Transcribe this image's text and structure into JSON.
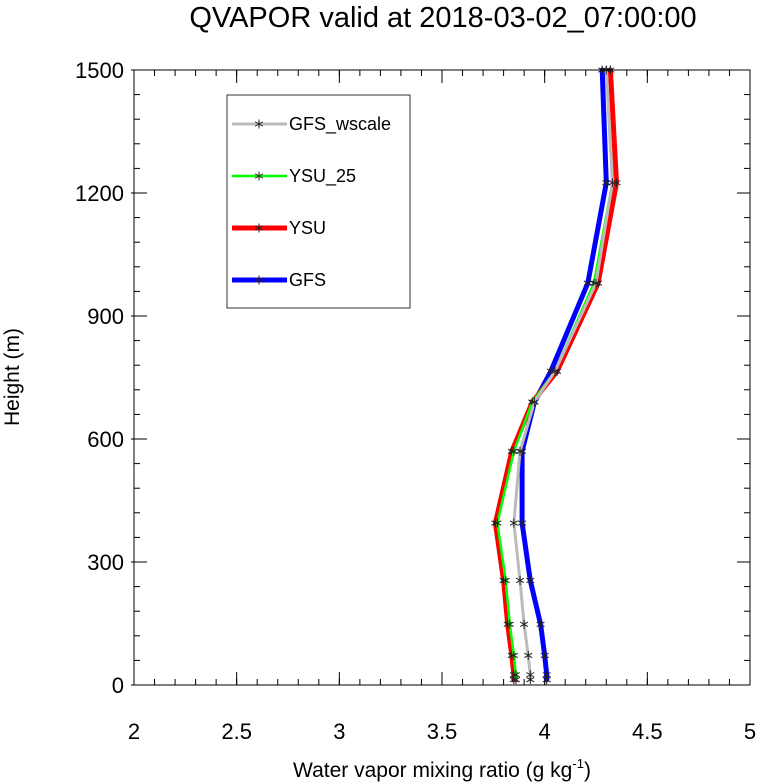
{
  "chart_data": {
    "type": "line",
    "title": "QVAPOR valid at 2018-03-02_07:00:00",
    "xlabel": "Water vapor mixing ratio (g kg",
    "xlabel_sup": "-1",
    "xlabel_end": ")",
    "ylabel": "Height (m)",
    "xlim": [
      2,
      5
    ],
    "ylim": [
      0,
      1500
    ],
    "xticks": [
      2,
      2.5,
      3,
      3.5,
      4,
      4.5,
      5
    ],
    "xtick_labels": [
      "2",
      "2.5",
      "3",
      "3.5",
      "4",
      "4.5",
      "5"
    ],
    "yticks": [
      0,
      300,
      600,
      900,
      1200,
      1500
    ],
    "ytick_labels": [
      "0",
      "300",
      "600",
      "900",
      "1200",
      "1500"
    ],
    "legend_position": "top-left",
    "marker": "asterisk",
    "series": [
      {
        "name": "GFS",
        "color": "#0000ff",
        "width": 5,
        "points": [
          [
            4.01,
            13
          ],
          [
            4.01,
            25
          ],
          [
            4.0,
            72
          ],
          [
            3.98,
            148
          ],
          [
            3.93,
            255
          ],
          [
            3.89,
            395
          ],
          [
            3.89,
            570
          ],
          [
            3.95,
            690
          ],
          [
            4.03,
            765
          ],
          [
            4.21,
            980
          ],
          [
            4.3,
            1225
          ],
          [
            4.28,
            1500
          ]
        ]
      },
      {
        "name": "YSU",
        "color": "#ff0000",
        "width": 5,
        "points": [
          [
            3.85,
            13
          ],
          [
            3.85,
            25
          ],
          [
            3.84,
            72
          ],
          [
            3.82,
            148
          ],
          [
            3.8,
            255
          ],
          [
            3.76,
            395
          ],
          [
            3.84,
            570
          ],
          [
            3.94,
            690
          ],
          [
            4.06,
            765
          ],
          [
            4.26,
            980
          ],
          [
            4.35,
            1225
          ],
          [
            4.32,
            1500
          ]
        ]
      },
      {
        "name": "YSU_25",
        "color": "#00ff00",
        "width": 2.5,
        "points": [
          [
            3.86,
            13
          ],
          [
            3.86,
            25
          ],
          [
            3.85,
            72
          ],
          [
            3.83,
            148
          ],
          [
            3.81,
            255
          ],
          [
            3.77,
            395
          ],
          [
            3.85,
            570
          ],
          [
            3.94,
            690
          ],
          [
            4.05,
            765
          ],
          [
            4.24,
            980
          ],
          [
            4.33,
            1225
          ],
          [
            4.3,
            1500
          ]
        ]
      },
      {
        "name": "GFS_wscale",
        "color": "#bbbbbb",
        "width": 3,
        "points": [
          [
            3.93,
            13
          ],
          [
            3.93,
            25
          ],
          [
            3.92,
            72
          ],
          [
            3.9,
            148
          ],
          [
            3.88,
            255
          ],
          [
            3.85,
            395
          ],
          [
            3.88,
            570
          ],
          [
            3.95,
            690
          ],
          [
            4.05,
            765
          ],
          [
            4.25,
            980
          ],
          [
            4.33,
            1225
          ],
          [
            4.3,
            1500
          ]
        ]
      }
    ],
    "legend": [
      {
        "name": "GFS_wscale",
        "color": "#bbbbbb",
        "width": 3
      },
      {
        "name": "YSU_25",
        "color": "#00ff00",
        "width": 2.5
      },
      {
        "name": "YSU",
        "color": "#ff0000",
        "width": 5
      },
      {
        "name": "GFS",
        "color": "#0000ff",
        "width": 5
      }
    ]
  }
}
